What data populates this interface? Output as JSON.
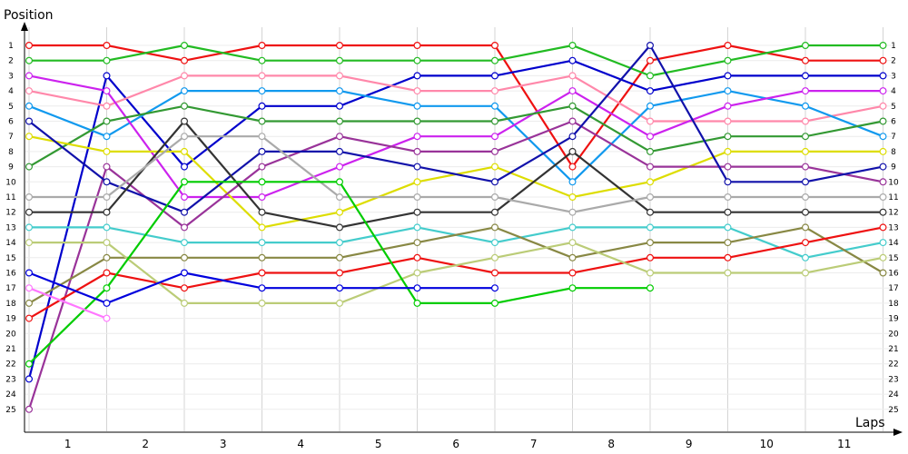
{
  "chart_data": {
    "type": "line",
    "title": "",
    "ylabel": "Position",
    "xlabel": "Laps",
    "x_tick_labels": [
      "1",
      "2",
      "3",
      "4",
      "5",
      "6",
      "7",
      "8",
      "9",
      "10",
      "11"
    ],
    "y_tick_labels": [
      "1",
      "2",
      "3",
      "4",
      "5",
      "6",
      "7",
      "8",
      "9",
      "10",
      "11",
      "12",
      "13",
      "14",
      "15",
      "16",
      "17",
      "18",
      "19",
      "20",
      "21",
      "22",
      "23",
      "24",
      "25"
    ],
    "ylim": [
      1,
      25
    ],
    "y_inverted": true,
    "grid": true,
    "legend": "none",
    "series": [
      {
        "color": "#ee1111",
        "values": [
          1,
          1,
          2,
          1,
          1,
          1,
          1,
          9,
          2,
          1,
          2,
          2
        ]
      },
      {
        "color": "#22bb22",
        "values": [
          2,
          2,
          1,
          2,
          2,
          2,
          2,
          1,
          3,
          2,
          1,
          1
        ]
      },
      {
        "color": "#0000cc",
        "values": [
          23,
          3,
          9,
          5,
          5,
          3,
          3,
          2,
          4,
          3,
          3,
          3
        ]
      },
      {
        "color": "#ff88aa",
        "values": [
          4,
          5,
          3,
          3,
          3,
          4,
          4,
          3,
          6,
          6,
          6,
          5
        ]
      },
      {
        "color": "#1199ee",
        "values": [
          5,
          7,
          4,
          4,
          4,
          5,
          5,
          10,
          5,
          4,
          5,
          7
        ]
      },
      {
        "color": "#cc22ee",
        "values": [
          3,
          4,
          11,
          11,
          9,
          7,
          7,
          4,
          7,
          5,
          4,
          4
        ]
      },
      {
        "color": "#339933",
        "values": [
          9,
          6,
          5,
          6,
          6,
          6,
          6,
          5,
          8,
          7,
          7,
          6
        ]
      },
      {
        "color": "#dddd00",
        "values": [
          7,
          8,
          8,
          13,
          12,
          10,
          9,
          11,
          10,
          8,
          8,
          8
        ]
      },
      {
        "color": "#993399",
        "values": [
          25,
          9,
          13,
          9,
          7,
          8,
          8,
          6,
          9,
          9,
          9,
          10
        ]
      },
      {
        "color": "#1111aa",
        "values": [
          6,
          10,
          12,
          8,
          8,
          9,
          10,
          7,
          1,
          10,
          10,
          9
        ]
      },
      {
        "color": "#333333",
        "values": [
          12,
          12,
          6,
          12,
          13,
          12,
          12,
          8,
          12,
          12,
          12,
          12
        ]
      },
      {
        "color": "#aaaaaa",
        "values": [
          11,
          11,
          7,
          7,
          11,
          11,
          11,
          12,
          11,
          11,
          11,
          11
        ]
      },
      {
        "color": "#44cccc",
        "values": [
          13,
          13,
          14,
          14,
          14,
          13,
          14,
          13,
          13,
          13,
          15,
          14
        ]
      },
      {
        "color": "#888844",
        "values": [
          18,
          15,
          15,
          15,
          15,
          14,
          13,
          15,
          14,
          14,
          13,
          16
        ]
      },
      {
        "color": "#ee1111",
        "values": [
          19,
          16,
          17,
          16,
          16,
          15,
          16,
          16,
          15,
          15,
          14,
          13
        ]
      },
      {
        "color": "#bbcc77",
        "values": [
          14,
          14,
          18,
          18,
          18,
          16,
          15,
          14,
          16,
          16,
          16,
          15
        ]
      },
      {
        "color": "#00cc00",
        "values": [
          22,
          17,
          10,
          10,
          10,
          18,
          18,
          17,
          17,
          null,
          null,
          null
        ]
      },
      {
        "color": "#0000dd",
        "values": [
          16,
          18,
          16,
          17,
          17,
          17,
          17,
          null,
          null,
          null,
          null,
          null
        ]
      },
      {
        "color": "#ff77ff",
        "values": [
          17,
          19,
          null,
          null,
          null,
          null,
          null,
          null,
          null,
          null,
          null,
          null
        ]
      }
    ]
  }
}
